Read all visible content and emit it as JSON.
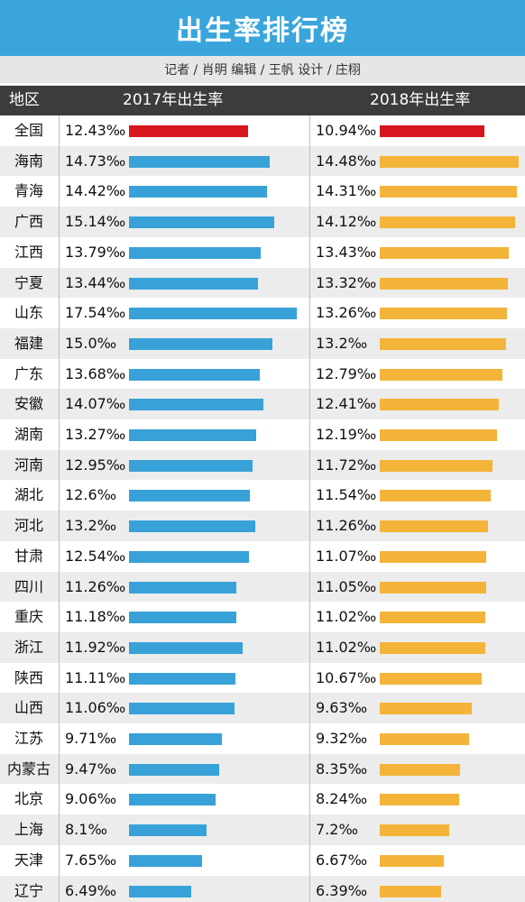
{
  "title": "出生率排行榜",
  "credits": "记者 / 肖明   编辑 / 王帆   设计 / 庄栩",
  "header": {
    "region": "地区",
    "col2017": "2017年出生率",
    "col2018": "2018年出生率"
  },
  "colors": {
    "title_bg": "#3aa5dc",
    "highlight": "#d7161e",
    "series2017": "#38a2d8",
    "series2018": "#f4b43a"
  },
  "chart_data": {
    "type": "bar",
    "unit": "‰",
    "categories": [
      "全国",
      "海南",
      "青海",
      "广西",
      "江西",
      "宁夏",
      "山东",
      "福建",
      "广东",
      "安徽",
      "湖南",
      "河南",
      "湖北",
      "河北",
      "甘肃",
      "四川",
      "重庆",
      "浙江",
      "陕西",
      "山西",
      "江苏",
      "内蒙古",
      "北京",
      "上海",
      "天津",
      "辽宁"
    ],
    "series": [
      {
        "name": "2017年出生率",
        "labels": [
          "12.43‰",
          "14.73‰",
          "14.42‰",
          "15.14‰",
          "13.79‰",
          "13.44‰",
          "17.54‰",
          "15.0‰",
          "13.68‰",
          "14.07‰",
          "13.27‰",
          "12.95‰",
          "12.6‰",
          "13.2‰",
          "12.54‰",
          "11.26‰",
          "11.18‰",
          "11.92‰",
          "11.11‰",
          "11.06‰",
          "9.71‰",
          "9.47‰",
          "9.06‰",
          "8.1‰",
          "7.65‰",
          "6.49‰"
        ],
        "values": [
          12.43,
          14.73,
          14.42,
          15.14,
          13.79,
          13.44,
          17.54,
          15.0,
          13.68,
          14.07,
          13.27,
          12.95,
          12.6,
          13.2,
          12.54,
          11.26,
          11.18,
          11.92,
          11.11,
          11.06,
          9.71,
          9.47,
          9.06,
          8.1,
          7.65,
          6.49
        ]
      },
      {
        "name": "2018年出生率",
        "labels": [
          "10.94‰",
          "14.48‰",
          "14.31‰",
          "14.12‰",
          "13.43‰",
          "13.32‰",
          "13.26‰",
          "13.2‰",
          "12.79‰",
          "12.41‰",
          "12.19‰",
          "11.72‰",
          "11.54‰",
          "11.26‰",
          "11.07‰",
          "11.05‰",
          "11.02‰",
          "11.02‰",
          "10.67‰",
          "9.63‰",
          "9.32‰",
          "8.35‰",
          "8.24‰",
          "7.2‰",
          "6.67‰",
          "6.39‰"
        ],
        "values": [
          10.94,
          14.48,
          14.31,
          14.12,
          13.43,
          13.32,
          13.26,
          13.2,
          12.79,
          12.41,
          12.19,
          11.72,
          11.54,
          11.26,
          11.07,
          11.05,
          11.02,
          11.02,
          10.67,
          9.63,
          9.32,
          8.35,
          8.24,
          7.2,
          6.67,
          6.39
        ]
      }
    ]
  }
}
